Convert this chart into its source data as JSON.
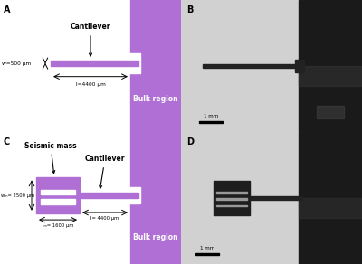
{
  "purple": "#b06fd4",
  "white": "#ffffff",
  "panel_A": {
    "cantilever_label": "Cantilever",
    "w_label": "w=500 μm",
    "l_label": "l=4400 μm",
    "bulk_label": "Bulk region"
  },
  "panel_C": {
    "seismic_label": "Seismic mass",
    "cantilever_label": "Cantilever",
    "wm_label": "wₘ= 2500 μm",
    "lm_label": "lₘ= 1600 μm",
    "l_label": "l= 4400 μm",
    "bulk_label": "Bulk region"
  },
  "light_gray": 0.82,
  "dark_color": "#1a1a1a",
  "scale_bar_label": "1 mm"
}
